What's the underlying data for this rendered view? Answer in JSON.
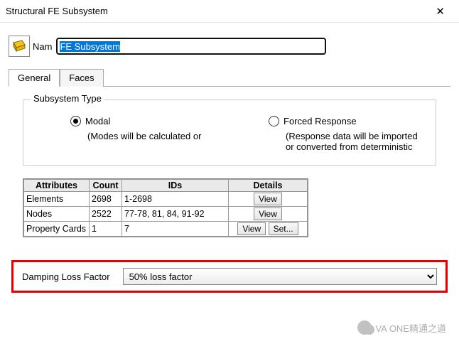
{
  "window": {
    "title": "Structural FE Subsystem"
  },
  "name_field": {
    "label": "Nam",
    "value": "FE Subsystem"
  },
  "tabs": [
    {
      "label": "General",
      "active": true
    },
    {
      "label": "Faces",
      "active": false
    }
  ],
  "subsystem_type_group": {
    "title": "Subsystem Type",
    "options": [
      {
        "label": "Modal",
        "description": "(Modes will be calculated or",
        "selected": true
      },
      {
        "label": "Forced Response",
        "description": "(Response data will be imported or converted from deterministic",
        "selected": false
      }
    ]
  },
  "attributes_table": {
    "columns": [
      "Attributes",
      "Count",
      "IDs",
      "Details"
    ],
    "rows": [
      {
        "attr": "Elements",
        "count": "2698",
        "ids": "1-2698",
        "buttons": [
          "View"
        ]
      },
      {
        "attr": "Nodes",
        "count": "2522",
        "ids": "77-78, 81, 84, 91-92",
        "buttons": [
          "View"
        ]
      },
      {
        "attr": "Property Cards",
        "count": "1",
        "ids": "7",
        "buttons": [
          "View",
          "Set..."
        ]
      }
    ],
    "header_bg": "#eaeaea",
    "border_color": "#999999"
  },
  "damping_row": {
    "label": "Damping Loss Factor",
    "value": "50% loss factor",
    "highlight_border": "#e60000"
  },
  "watermark_text": "VA ONE精通之道"
}
